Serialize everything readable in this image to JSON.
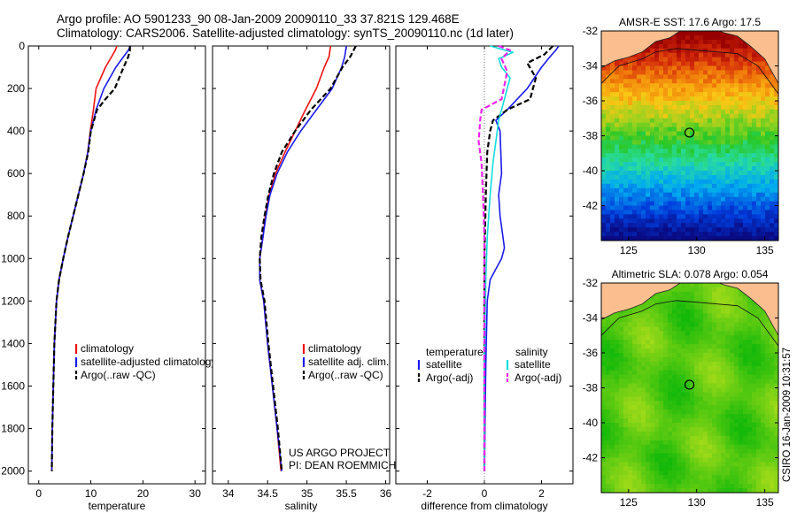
{
  "header": {
    "line1": "Argo profile: AO 5901233_90 08-Jan-2009 20090110_33 37.821S 129.468E",
    "line2": "Climatology: CARS2006. Satellite-adjusted climatology: synTS_20090110.nc (1d later)"
  },
  "side_stamp": "CSIRO 16-Jan-2009 10:31:57",
  "colors": {
    "climatology": "#ee1111",
    "satellite": "#1a1aee",
    "argo": "#000000",
    "salinity_satellite": "#11dddd",
    "salinity_argo": "#ee22ee",
    "land": "#fbbf8f"
  },
  "chart_data": [
    {
      "id": "temperature-panel",
      "type": "line",
      "xlabel": "temperature",
      "ylabel": "",
      "xlim": [
        -2,
        32
      ],
      "ylim": [
        0,
        2060
      ],
      "y_inverted": true,
      "xticks": [
        0,
        10,
        20,
        30
      ],
      "yticks": [
        0,
        200,
        400,
        600,
        800,
        1000,
        1200,
        1400,
        1600,
        1800,
        2000
      ],
      "legend": [
        "climatology",
        "satellite-adjusted climatology",
        "Argo(..raw -QC)"
      ],
      "series": [
        {
          "name": "climatology",
          "style": "solid",
          "color": "#ee1111",
          "x": [
            15.0,
            14.7,
            14.0,
            12.8,
            11.0,
            10.5,
            9.9,
            9.4,
            8.6,
            7.6,
            6.6,
            5.6,
            4.7,
            3.9,
            3.4,
            3.0,
            2.8,
            2.6,
            2.5
          ],
          "y": [
            0,
            20,
            50,
            100,
            200,
            300,
            400,
            500,
            600,
            700,
            800,
            900,
            1000,
            1100,
            1200,
            1400,
            1600,
            1800,
            2000
          ]
        },
        {
          "name": "satellite-adjusted climatology",
          "style": "solid",
          "color": "#1a1aee",
          "x": [
            17.6,
            17.2,
            16.3,
            14.8,
            12.5,
            11.0,
            10.0,
            9.4,
            8.6,
            7.6,
            6.6,
            5.6,
            4.7,
            3.9,
            3.4,
            3.0,
            2.8,
            2.6,
            2.5
          ],
          "y": [
            0,
            20,
            50,
            100,
            200,
            300,
            400,
            500,
            600,
            700,
            800,
            900,
            1000,
            1100,
            1200,
            1400,
            1600,
            1800,
            2000
          ]
        },
        {
          "name": "Argo(..raw -QC)",
          "style": "dashed",
          "color": "#000000",
          "x": [
            17.5,
            17.5,
            17.2,
            16.3,
            14.6,
            12.8,
            11.2,
            10.0,
            9.5,
            8.6,
            7.6,
            6.6,
            5.6,
            4.7,
            3.9,
            3.4,
            3.0,
            2.8,
            2.6,
            2.5
          ],
          "y": [
            0,
            20,
            50,
            100,
            200,
            250,
            300,
            400,
            500,
            600,
            700,
            800,
            900,
            1000,
            1100,
            1200,
            1400,
            1600,
            1800,
            2000
          ]
        }
      ]
    },
    {
      "id": "salinity-panel",
      "type": "line",
      "xlabel": "salinity",
      "ylabel": "",
      "xlim": [
        33.8,
        36.05
      ],
      "ylim": [
        0,
        2060
      ],
      "y_inverted": true,
      "xticks": [
        34,
        34.5,
        35,
        35.5,
        36
      ],
      "yticks": [
        0,
        200,
        400,
        600,
        800,
        1000,
        1200,
        1400,
        1600,
        1800,
        2000
      ],
      "legend": [
        "climatology",
        "satellite adj. clim.",
        "Argo(..raw -QC)"
      ],
      "annotation_lines": [
        "US ARGO PROJECT",
        "PI: DEAN ROEMMICH"
      ],
      "series": [
        {
          "name": "climatology",
          "style": "solid",
          "color": "#ee1111",
          "x": [
            35.3,
            35.28,
            35.22,
            35.12,
            34.98,
            34.85,
            34.72,
            34.6,
            34.52,
            34.47,
            34.44,
            34.4,
            34.4,
            34.45,
            34.5,
            34.56,
            34.62,
            34.67
          ],
          "y": [
            0,
            50,
            100,
            200,
            300,
            400,
            500,
            600,
            700,
            800,
            900,
            1000,
            1100,
            1200,
            1400,
            1600,
            1800,
            2000
          ]
        },
        {
          "name": "satellite adj. clim.",
          "style": "solid",
          "color": "#1a1aee",
          "x": [
            35.5,
            35.48,
            35.44,
            35.32,
            35.12,
            34.92,
            34.75,
            34.62,
            34.53,
            34.48,
            34.44,
            34.4,
            34.4,
            34.45,
            34.5,
            34.56,
            34.62,
            34.68
          ],
          "y": [
            0,
            50,
            100,
            200,
            300,
            400,
            500,
            600,
            700,
            800,
            900,
            1000,
            1100,
            1200,
            1400,
            1600,
            1800,
            2000
          ]
        },
        {
          "name": "Argo(..raw -QC)",
          "style": "dashed",
          "color": "#000000",
          "x": [
            35.62,
            35.55,
            35.45,
            35.3,
            35.05,
            34.85,
            34.68,
            34.58,
            34.51,
            34.46,
            34.42,
            34.4,
            34.41,
            34.46,
            34.51,
            34.57,
            34.63,
            34.68
          ],
          "y": [
            0,
            50,
            100,
            200,
            300,
            400,
            500,
            600,
            700,
            800,
            900,
            1000,
            1100,
            1200,
            1400,
            1600,
            1800,
            2000
          ]
        }
      ]
    },
    {
      "id": "difference-panel",
      "type": "line",
      "xlabel": "difference from climatology",
      "ylabel": "",
      "xlim": [
        -3.1,
        3.1
      ],
      "ylim": [
        0,
        2060
      ],
      "y_inverted": true,
      "xticks": [
        -2,
        0,
        2
      ],
      "yticks": [
        0,
        200,
        400,
        600,
        800,
        1000,
        1200,
        1400,
        1600,
        1800,
        2000
      ],
      "legend_headers": [
        "temperature",
        "salinity"
      ],
      "legend": [
        "satellite",
        "Argo(-adj)",
        "satellite",
        "Argo(-adj)"
      ],
      "series": [
        {
          "name": "temperature satellite",
          "group": "temperature",
          "style": "solid",
          "color": "#1a1aee",
          "x": [
            2.6,
            2.5,
            2.3,
            2.0,
            1.5,
            0.8,
            0.4,
            0.55,
            0.6,
            0.5,
            0.55,
            0.65,
            0.7,
            0.6,
            0.4,
            0.2,
            0.1,
            0.05,
            0.0
          ],
          "y": [
            0,
            20,
            50,
            100,
            200,
            300,
            350,
            400,
            600,
            700,
            800,
            900,
            950,
            1000,
            1050,
            1100,
            1200,
            1500,
            2000
          ]
        },
        {
          "name": "temperature Argo(-adj)",
          "group": "temperature",
          "style": "dashed",
          "color": "#000000",
          "x": [
            2.4,
            2.1,
            1.5,
            1.8,
            1.6,
            0.8,
            0.3,
            0.2,
            0.1,
            0.05,
            0.0,
            0.0
          ],
          "y": [
            0,
            40,
            80,
            150,
            250,
            300,
            350,
            400,
            500,
            700,
            1000,
            2000
          ]
        },
        {
          "name": "salinity satellite",
          "group": "salinity",
          "style": "solid",
          "color": "#11dddd",
          "x": [
            0.2,
            1.0,
            0.5,
            0.6,
            0.9,
            0.7,
            0.5,
            0.4,
            0.3,
            0.2,
            0.1,
            0.05,
            0.0,
            0.0
          ],
          "y": [
            0,
            30,
            60,
            100,
            150,
            250,
            350,
            450,
            550,
            700,
            900,
            1100,
            1500,
            2000
          ]
        },
        {
          "name": "salinity Argo(-adj)",
          "group": "salinity",
          "style": "dashed",
          "color": "#ee22ee",
          "x": [
            0.5,
            0.9,
            0.6,
            0.8,
            0.6,
            -0.1,
            -0.15,
            -0.2,
            -0.1,
            -0.05,
            0.0,
            0.0
          ],
          "y": [
            0,
            20,
            60,
            120,
            250,
            300,
            350,
            450,
            550,
            700,
            900,
            2000
          ]
        }
      ]
    },
    {
      "id": "sst-map",
      "type": "heatmap",
      "title": "AMSR-E SST: 17.6 Argo: 17.5",
      "xlim": [
        123,
        136
      ],
      "ylim": [
        -44,
        -32
      ],
      "xticks": [
        125,
        130,
        135
      ],
      "yticks": [
        -32,
        -34,
        -36,
        -38,
        -40,
        -42
      ],
      "ytick_labels": [
        "-32",
        "-34",
        "-36",
        "-38",
        "-40",
        "-42"
      ],
      "xtick_labels": [
        "125",
        "130",
        "135"
      ],
      "field_summary": "SST decreasing southward from about 20 C near the coast to about 10 C at 44S",
      "marker": {
        "lon": 129.47,
        "lat": -37.82
      }
    },
    {
      "id": "sla-map",
      "type": "heatmap",
      "title": "Altimetric SLA: 0.078 Argo: 0.054",
      "xlim": [
        123,
        136
      ],
      "ylim": [
        -44,
        -32
      ],
      "xticks": [
        125,
        130,
        135
      ],
      "yticks": [
        -32,
        -34,
        -36,
        -38,
        -40,
        -42
      ],
      "ytick_labels": [
        "-32",
        "-34",
        "-36",
        "-38",
        "-40",
        "-42"
      ],
      "xtick_labels": [
        "125",
        "130",
        "135"
      ],
      "field_summary": "sea level anomaly mostly near zero (green) with light yellow-green patches",
      "marker": {
        "lon": 129.47,
        "lat": -37.82
      }
    }
  ]
}
